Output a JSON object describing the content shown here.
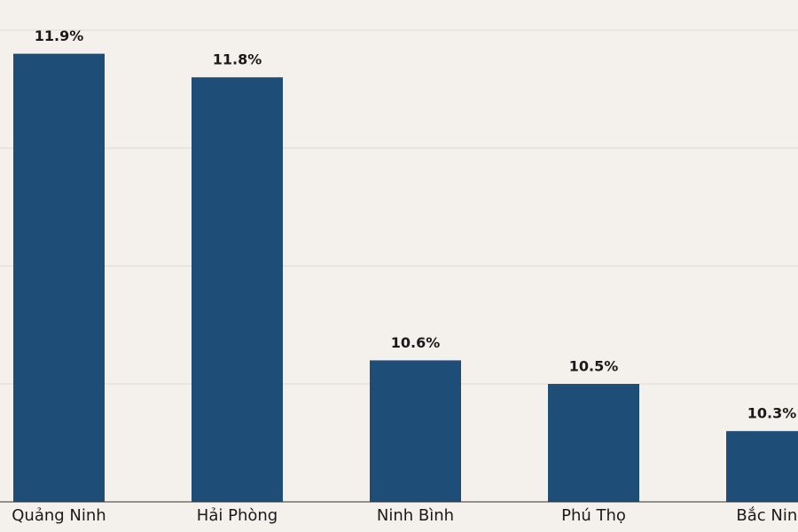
{
  "chart_data": {
    "type": "bar",
    "categories": [
      "Quảng Ninh",
      "Hải Phòng",
      "Ninh Bình",
      "Phú Thọ",
      "Bắc Ninh"
    ],
    "values": [
      11.9,
      11.8,
      10.6,
      10.5,
      10.3
    ],
    "value_labels": [
      "11.9%",
      "11.8%",
      "10.6%",
      "10.5%",
      "10.3%"
    ],
    "color": "#1e4d78",
    "ylim": [
      10,
      12
    ],
    "yticks": [
      10,
      10.5,
      11,
      11.5,
      12
    ],
    "grid": true
  }
}
